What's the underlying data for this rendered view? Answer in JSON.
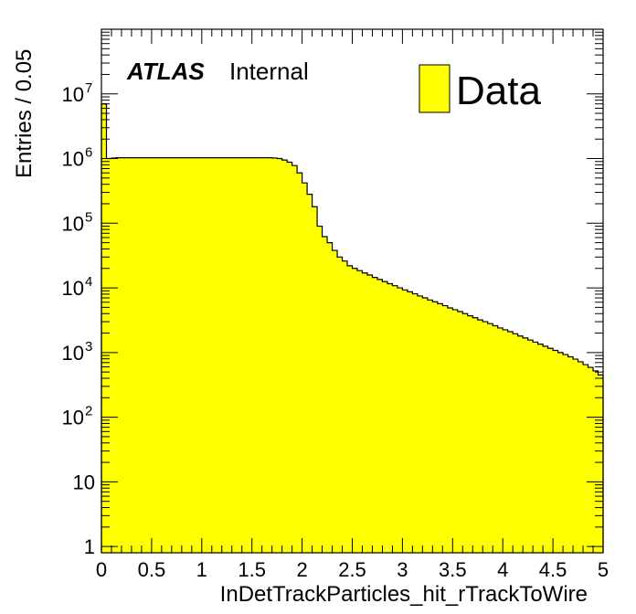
{
  "chart_data": {
    "type": "bar",
    "style": "histogram",
    "xlabel": "InDetTrackParticles_hit_rTrackToWire",
    "ylabel": "Entries / 0.05",
    "xlim": [
      0,
      5
    ],
    "ylim": [
      0.8,
      100000000
    ],
    "yscale": "log",
    "bin_width": 0.05,
    "x_ticks": [
      "0",
      "0.5",
      "1",
      "1.5",
      "2",
      "2.5",
      "3",
      "3.5",
      "4",
      "4.5",
      "5"
    ],
    "y_ticks": [
      {
        "value": 1,
        "base": "1",
        "exp": ""
      },
      {
        "value": 10,
        "base": "10",
        "exp": ""
      },
      {
        "value": 100,
        "base": "10",
        "exp": "2"
      },
      {
        "value": 1000,
        "base": "10",
        "exp": "3"
      },
      {
        "value": 10000,
        "base": "10",
        "exp": "4"
      },
      {
        "value": 100000,
        "base": "10",
        "exp": "5"
      },
      {
        "value": 1000000,
        "base": "10",
        "exp": "6"
      },
      {
        "value": 10000000,
        "base": "10",
        "exp": "7"
      }
    ],
    "series": [
      {
        "name": "Data",
        "color": "#ffff00",
        "line_color": "#000000",
        "values": [
          7000000,
          1000000,
          1020000,
          1030000,
          1030000,
          1030000,
          1030000,
          1030000,
          1030000,
          1030000,
          1030000,
          1030000,
          1030000,
          1030000,
          1030000,
          1030000,
          1030000,
          1030000,
          1030000,
          1030000,
          1030000,
          1030000,
          1030000,
          1030000,
          1030000,
          1030000,
          1030000,
          1030000,
          1030000,
          1030000,
          1030000,
          1030000,
          1030000,
          1030000,
          1020000,
          1000000,
          950000,
          880000,
          780000,
          600000,
          420000,
          280000,
          180000,
          90000,
          62000,
          50000,
          38000,
          30000,
          26000,
          22000,
          20000,
          18500,
          17000,
          15800,
          14500,
          13500,
          12500,
          11600,
          10800,
          10000,
          9300,
          8700,
          8100,
          7500,
          7000,
          6500,
          6100,
          5700,
          5300,
          4900,
          4600,
          4300,
          4000,
          3700,
          3450,
          3200,
          3000,
          2800,
          2600,
          2400,
          2250,
          2100,
          1950,
          1800,
          1680,
          1560,
          1450,
          1350,
          1250,
          1160,
          1080,
          1000,
          930,
          860,
          790,
          720,
          650,
          590,
          520,
          450
        ]
      }
    ],
    "legend": {
      "position": "top-right",
      "entries": [
        "Data"
      ]
    },
    "grid": false
  },
  "labels": {
    "atlas": "ATLAS",
    "internal": "Internal"
  }
}
